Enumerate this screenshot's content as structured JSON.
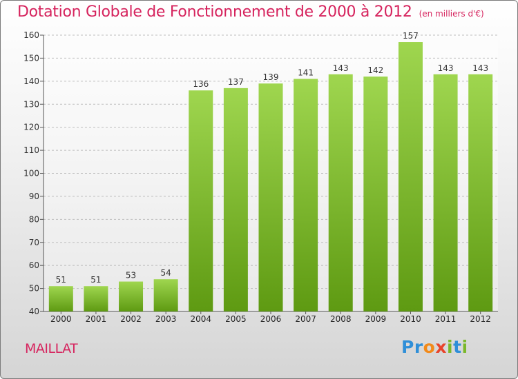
{
  "title": "Dotation Globale de Fonctionnement de 2000 à 2012",
  "unit": "(en milliers d'€)",
  "commune": "MAILLAT",
  "logo": {
    "letters": [
      "P",
      "r",
      "o",
      "x",
      "i",
      "t",
      "i"
    ],
    "colors": [
      "#2f8fd8",
      "#2f8fd8",
      "#f28a1a",
      "#e8442b",
      "#7ab829",
      "#2f8fd8",
      "#7ab829"
    ]
  },
  "colors": {
    "bar_top": "#9fd64f",
    "bar_bottom": "#5e9a12",
    "grid": "#bdbdbd",
    "title": "#d6245e"
  },
  "chart_data": {
    "type": "bar",
    "categories": [
      "2000",
      "2001",
      "2002",
      "2003",
      "2004",
      "2005",
      "2006",
      "2007",
      "2008",
      "2009",
      "2010",
      "2011",
      "2012"
    ],
    "values": [
      51,
      51,
      53,
      54,
      136,
      137,
      139,
      141,
      143,
      142,
      157,
      143,
      143
    ],
    "ylim": [
      40,
      160
    ],
    "yticks": [
      40,
      50,
      60,
      70,
      80,
      90,
      100,
      110,
      120,
      130,
      140,
      150,
      160
    ],
    "grid": true
  }
}
